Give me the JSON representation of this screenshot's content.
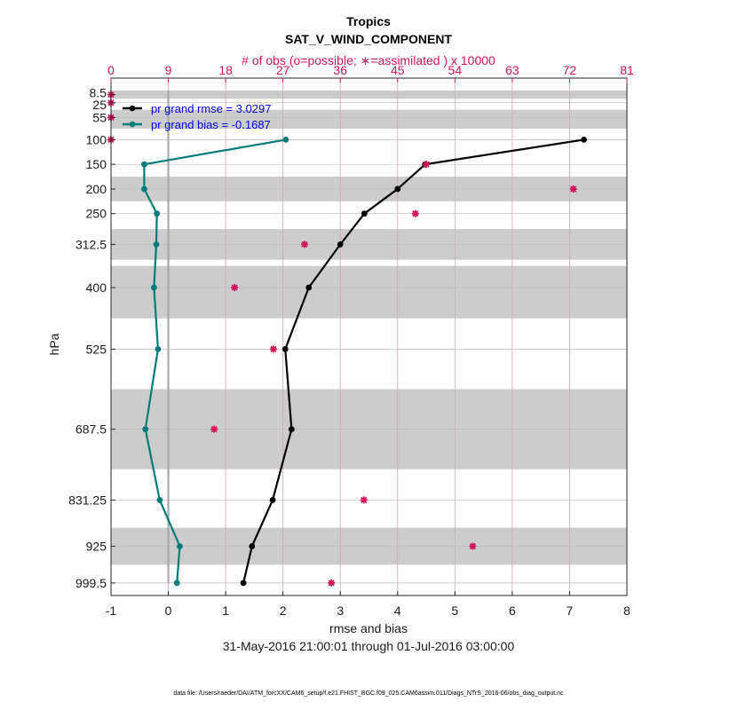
{
  "chart_data": {
    "type": "line",
    "title": "Tropics",
    "subtitle": "SAT_V_WIND_COMPONENT",
    "top_axis_label": "# of obs (o=possible; ∗=assimilated ) x 10000",
    "top_ticks": [
      "0",
      "9",
      "18",
      "27",
      "36",
      "45",
      "54",
      "63",
      "72",
      "81"
    ],
    "top_xlim": [
      0,
      81
    ],
    "xlabel": "rmse and bias",
    "ylabel": "hPa",
    "date_range": "31-May-2016 21:00:01 through 01-Jul-2016 03:00:00",
    "footer": "data file: /Users/raeder/DAI/ATM_forcXX/CAM6_setup/f.e21.FHIST_BGC.f09_025.CAM6assim.011/Diags_NTrS_2016-06/obs_diag_output.nc",
    "xlim": [
      -1,
      8
    ],
    "x_ticks": [
      "-1",
      "0",
      "1",
      "2",
      "3",
      "4",
      "5",
      "6",
      "7",
      "8"
    ],
    "y_tick_labels": [
      "8.5",
      "25",
      "55",
      "100",
      "150",
      "200",
      "250",
      "312.5",
      "400",
      "525",
      "687.5",
      "831.25",
      "925",
      "999.5"
    ],
    "levels": [
      8.5,
      25,
      55,
      100,
      150,
      200,
      250,
      312.5,
      400,
      525,
      687.5,
      831.25,
      925,
      999.5
    ],
    "series": [
      {
        "name": "pr grand rmse = 3.0297",
        "color": "#000000",
        "levels": [
          100,
          150,
          200,
          250,
          312.5,
          400,
          525,
          687.5,
          831.25,
          925,
          999.5
        ],
        "values": [
          7.25,
          4.48,
          4.0,
          3.42,
          3.0,
          2.45,
          2.04,
          2.15,
          1.82,
          1.46,
          1.31
        ]
      },
      {
        "name": "pr grand bias = -0.1687",
        "color": "#007b7b",
        "levels": [
          100,
          150,
          200,
          250,
          312.5,
          400,
          525,
          687.5,
          831.25,
          925,
          999.5
        ],
        "values": [
          2.05,
          -0.42,
          -0.42,
          -0.2,
          -0.21,
          -0.25,
          -0.18,
          -0.4,
          -0.15,
          0.2,
          0.15
        ]
      }
    ],
    "obs_assimilated": {
      "color": "#d1145a",
      "levels": [
        8.5,
        25,
        55,
        100,
        150,
        200,
        250,
        312.5,
        400,
        525,
        687.5,
        831.25,
        925,
        999.5
      ],
      "values": [
        0,
        0,
        0,
        0,
        49.5,
        72.6,
        47.8,
        30.4,
        19.4,
        25.5,
        16.2,
        39.7,
        56.8,
        34.6
      ]
    },
    "shaded_bands": [
      [
        0,
        17
      ],
      [
        39.3,
        77.6
      ],
      [
        175,
        225
      ],
      [
        281.25,
        343.75
      ],
      [
        356.25,
        462.5
      ],
      [
        606.25,
        768.75
      ],
      [
        887.5,
        962.5
      ]
    ],
    "legend_position": "top-left"
  }
}
